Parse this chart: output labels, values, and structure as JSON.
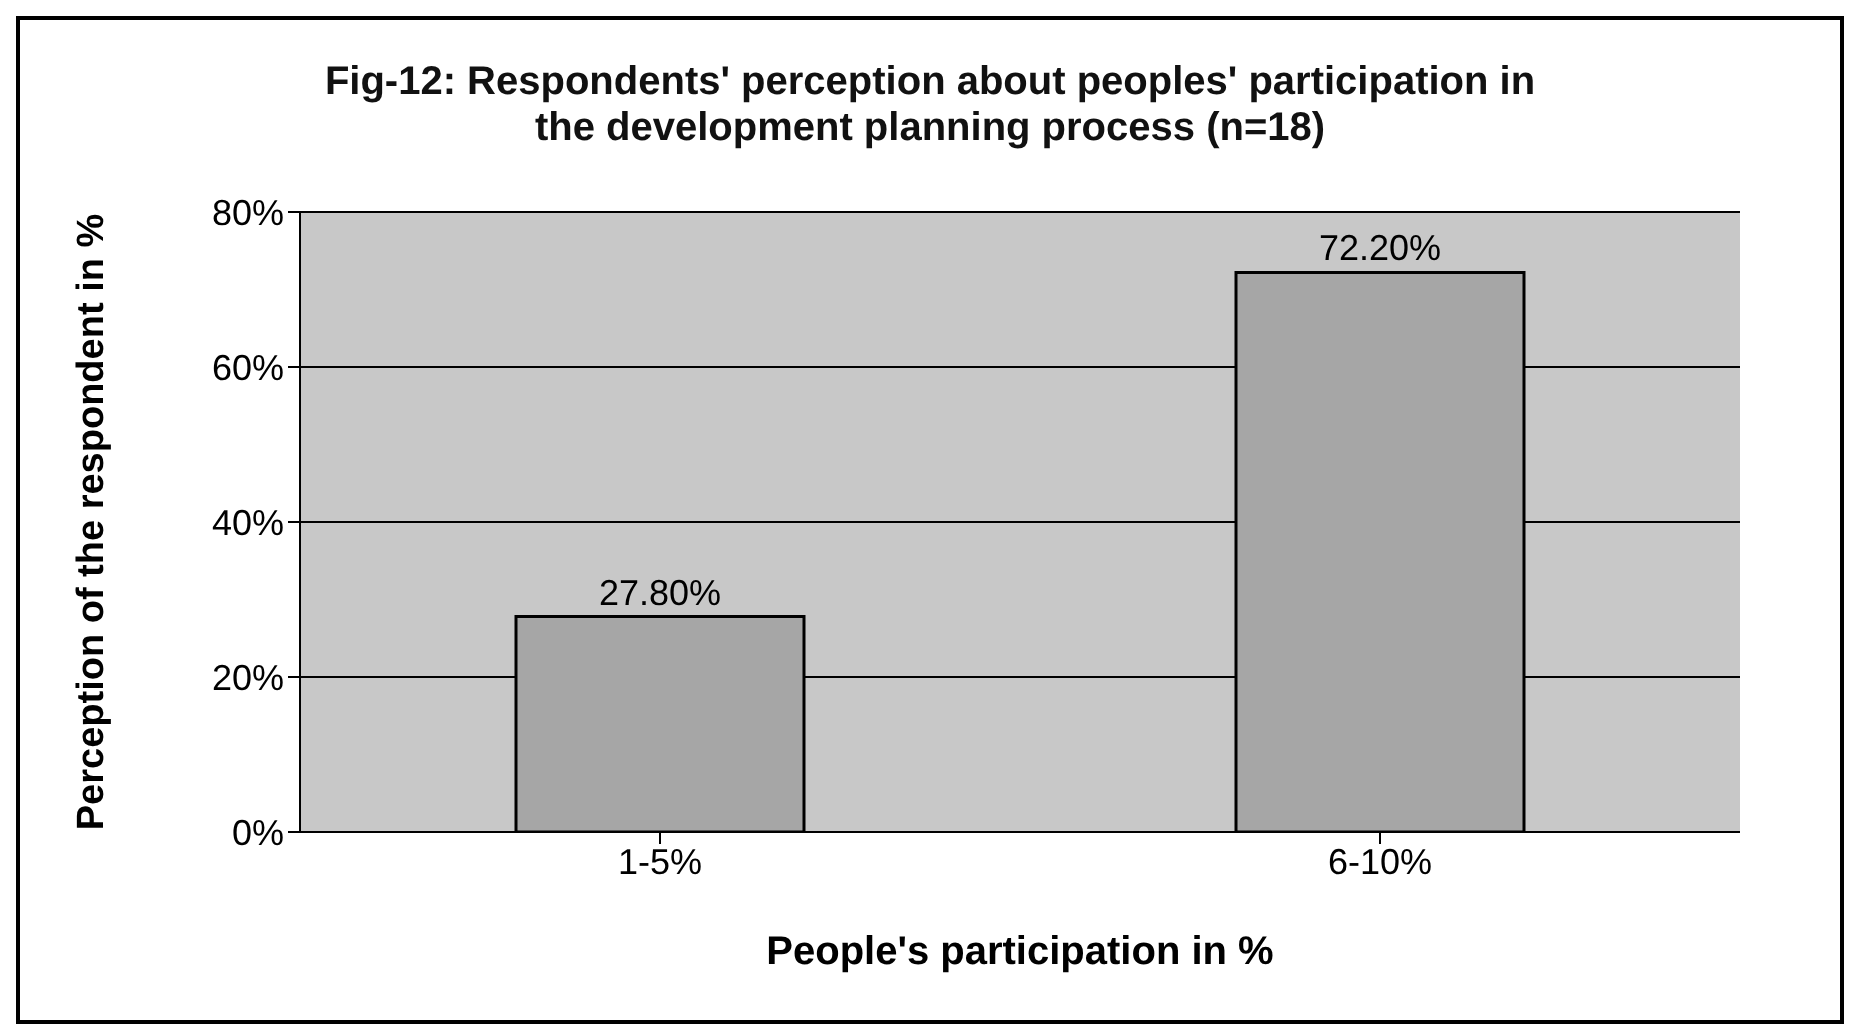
{
  "chart_data": {
    "type": "bar",
    "title": "Fig-12: Respondents' perception about peoples' participation in the development planning process (n=18)",
    "xlabel": "People's participation in %",
    "ylabel": "Perception of the respondent in %",
    "categories": [
      "1-5%",
      "6-10%"
    ],
    "values": [
      27.8,
      72.2
    ],
    "value_labels": [
      "27.80%",
      "72.20%"
    ],
    "color": "#a6a6a6",
    "ylim": [
      0,
      80
    ],
    "yticks": [
      {
        "value": 0,
        "label": "0%"
      },
      {
        "value": 20,
        "label": "20%"
      },
      {
        "value": 40,
        "label": "40%"
      },
      {
        "value": 60,
        "label": "60%"
      },
      {
        "value": 80,
        "label": "80%"
      }
    ],
    "grid": "y",
    "legend": false
  }
}
